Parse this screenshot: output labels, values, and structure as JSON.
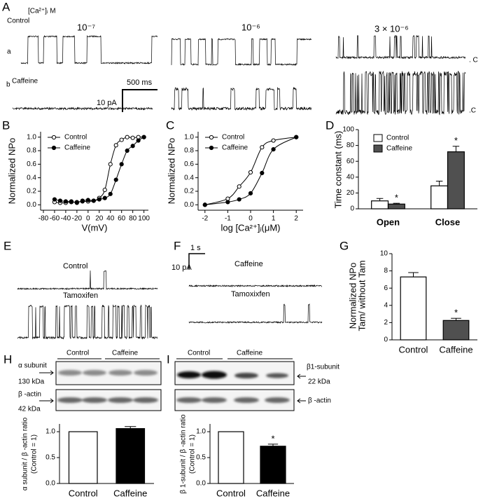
{
  "panels": {
    "labels": [
      "A",
      "B",
      "C",
      "D",
      "E",
      "F",
      "G",
      "H",
      "I"
    ]
  },
  "panel_a": {
    "concentration_unit": "[Ca²⁺]ᵢ M",
    "concentrations": [
      "10⁻⁷",
      "10⁻⁶",
      "3 × 10⁻⁶"
    ],
    "rows": [
      {
        "marker": "a",
        "condition": "Control"
      },
      {
        "marker": "b",
        "condition": "Caffeine"
      }
    ],
    "closed_level_labels": [
      ". C",
      ".C"
    ],
    "scale_bar": {
      "time": "500 ms",
      "current": "10 pA"
    }
  },
  "panel_e": {
    "traces": [
      "Control",
      "Tamoxifen"
    ]
  },
  "panel_f": {
    "traces": [
      "Caffeine",
      "Tamoxixfen"
    ],
    "scale_bar": {
      "time": "1 s",
      "current": "10 pA"
    }
  },
  "panel_h": {
    "groups": [
      "Control",
      "Caffeine"
    ],
    "bands": [
      {
        "name": "α subunit",
        "size": "130 kDa"
      },
      {
        "name": "β -actin",
        "size": "42 kDa"
      }
    ]
  },
  "panel_i": {
    "groups": [
      "Control",
      "Caffeine"
    ],
    "bands": [
      {
        "name": "β1-subunit",
        "size": "22 kDa"
      },
      {
        "name": "β -actin"
      }
    ]
  },
  "chart_data": [
    {
      "type": "line",
      "x_label": "V(mV)",
      "y_label": "Normalized NPo",
      "x": [
        -60,
        -50,
        -40,
        -30,
        -20,
        -10,
        0,
        10,
        20,
        30,
        40,
        50,
        60,
        70,
        80,
        90,
        100
      ],
      "series": [
        {
          "name": "Control",
          "color": "#000000",
          "marker_fill": "#ffffff",
          "values": [
            0.04,
            0.03,
            0.03,
            0.04,
            0.04,
            0.05,
            0.05,
            0.06,
            0.1,
            0.22,
            0.6,
            0.88,
            0.96,
            1.0,
            0.99,
            1.0,
            1.0
          ]
        },
        {
          "name": "Caffeine",
          "color": "#000000",
          "marker_fill": "#000000",
          "values": [
            0.08,
            0.06,
            0.05,
            0.05,
            0.03,
            0.06,
            0.07,
            0.06,
            0.08,
            0.1,
            0.16,
            0.37,
            0.6,
            0.8,
            0.87,
            0.95,
            1.0
          ]
        }
      ],
      "xlim": [
        -85,
        108
      ],
      "xticks": [
        -80,
        -60,
        -40,
        -20,
        0,
        20,
        40,
        60,
        80,
        100
      ],
      "ylim": [
        -0.08,
        1.08
      ],
      "yticks": [
        {
          "value": 0,
          "label": "0.0"
        },
        {
          "value": 0.2,
          "label": "0.2"
        },
        {
          "value": 0.4,
          "label": "0.4"
        },
        {
          "value": 0.6,
          "label": "0.6"
        },
        {
          "value": 0.8,
          "label": "0.8"
        },
        {
          "value": 1,
          "label": "1.0"
        }
      ],
      "legend": "upper left"
    },
    {
      "type": "line",
      "x_label": "log [Ca²⁺]ᵢ(μM)",
      "y_label": "Normalized NPo",
      "x": [
        -2,
        -1,
        -0.5,
        0,
        0.5,
        1,
        2
      ],
      "series": [
        {
          "name": "Control",
          "color": "#000000",
          "marker_fill": "#ffffff",
          "values": [
            0,
            0.09,
            0.27,
            0.48,
            0.85,
            0.95,
            1.0
          ]
        },
        {
          "name": "Caffeine",
          "color": "#000000",
          "marker_fill": "#000000",
          "values": [
            0,
            0.04,
            0.08,
            0.17,
            0.47,
            0.82,
            1.0
          ]
        }
      ],
      "xlim": [
        -2.3,
        2.3
      ],
      "xticks": [
        -2,
        -1,
        0,
        1,
        2
      ],
      "ylim": [
        -0.08,
        1.08
      ],
      "yticks": [
        {
          "value": 0,
          "label": "0.0"
        },
        {
          "value": 0.2,
          "label": "0.2"
        },
        {
          "value": 0.4,
          "label": "0.4"
        },
        {
          "value": 0.6,
          "label": "0.6"
        },
        {
          "value": 0.8,
          "label": "0.8"
        },
        {
          "value": 1,
          "label": "1.0"
        }
      ],
      "legend": "upper left"
    },
    {
      "type": "bar",
      "y_label": "Time constant (ms)",
      "categories": [
        "Open",
        "Close"
      ],
      "series": [
        {
          "name": "Control",
          "color": "#ffffff",
          "values": [
            10,
            29
          ],
          "errors": [
            3,
            6
          ]
        },
        {
          "name": "Caffeine",
          "color": "#505050",
          "values": [
            6,
            72
          ],
          "errors": [
            1,
            7
          ],
          "significance": [
            "*",
            "*"
          ]
        }
      ],
      "ylim": [
        0,
        100
      ],
      "yticks": [
        0,
        20,
        40,
        60,
        80,
        100
      ],
      "legend": "upper left"
    },
    {
      "type": "bar",
      "y_label": [
        "Normalized NPo",
        "Tam/ without Tam"
      ],
      "categories": [
        "Control",
        "Caffeine"
      ],
      "values": [
        7.3,
        2.25
      ],
      "errors": [
        0.5,
        0.25
      ],
      "colors": [
        "#ffffff",
        "#505050"
      ],
      "significance": [
        null,
        "*"
      ],
      "ylim": [
        0,
        10
      ],
      "yticks": [
        0,
        2,
        4,
        6,
        8,
        10
      ]
    },
    {
      "type": "bar",
      "y_label": [
        "α subunit / β -actin ratio",
        "(Control = 1)"
      ],
      "categories": [
        "Control",
        "Caffeine"
      ],
      "values": [
        1.0,
        1.06
      ],
      "errors": [
        0,
        0.04
      ],
      "colors": [
        "#ffffff",
        "#000000"
      ],
      "ylim": [
        0,
        1.15
      ],
      "yticks": [
        {
          "value": 0,
          "label": "0.0"
        },
        {
          "value": 0.5,
          "label": "0.5"
        },
        {
          "value": 1,
          "label": "1.0"
        }
      ]
    },
    {
      "type": "bar",
      "y_label": [
        "β 1-subunit / β -actin ratio",
        "(Control = 1)"
      ],
      "categories": [
        "Control",
        "Caffeine"
      ],
      "values": [
        1.0,
        0.72
      ],
      "errors": [
        0,
        0.04
      ],
      "colors": [
        "#ffffff",
        "#000000"
      ],
      "significance": [
        null,
        "*"
      ],
      "ylim": [
        0,
        1.15
      ],
      "yticks": [
        {
          "value": 0,
          "label": "0.0"
        },
        {
          "value": 0.5,
          "label": "0.5"
        },
        {
          "value": 1,
          "label": "1.0"
        }
      ]
    }
  ]
}
